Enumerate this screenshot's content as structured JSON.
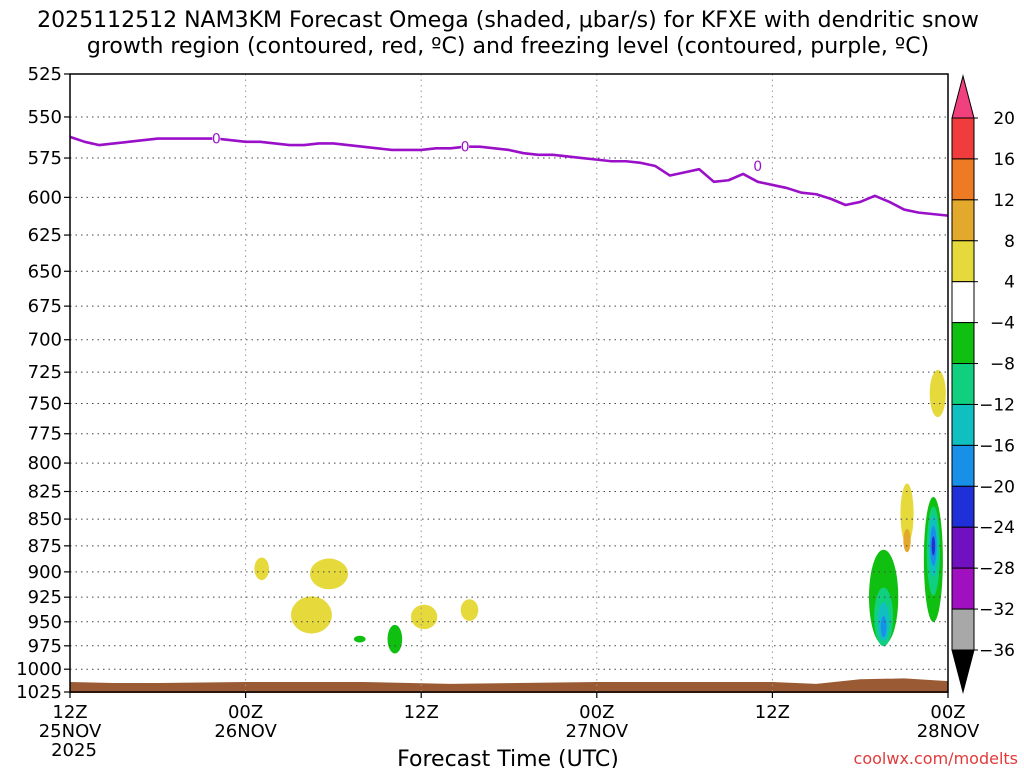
{
  "chart_data": {
    "type": "heatmap",
    "title_line1": "2025112512 NAM3KM Forecast Omega (shaded, μbar/s) for KFXE with dendritic snow",
    "title_line2": "growth region (contoured, red, ºC) and freezing level (contoured, purple, ºC)",
    "xlabel": "Forecast Time (UTC)",
    "ylabel": "",
    "credit": "coolwx.com/modelts",
    "x_range_hours": [
      0,
      60
    ],
    "y_range_hpa": [
      525,
      1025
    ],
    "y_ticks": [
      "525",
      "550",
      "575",
      "600",
      "625",
      "650",
      "675",
      "700",
      "725",
      "750",
      "775",
      "800",
      "825",
      "850",
      "875",
      "900",
      "925",
      "950",
      "975",
      "1000",
      "1025"
    ],
    "x_ticks": [
      {
        "hour": 0,
        "lines": [
          "12Z",
          "25NOV",
          "2025"
        ]
      },
      {
        "hour": 12,
        "lines": [
          "00Z",
          "26NOV"
        ]
      },
      {
        "hour": 24,
        "lines": [
          "12Z"
        ]
      },
      {
        "hour": 36,
        "lines": [
          "00Z",
          "27NOV"
        ]
      },
      {
        "hour": 48,
        "lines": [
          "12Z"
        ]
      },
      {
        "hour": 60,
        "lines": [
          "00Z",
          "28NOV"
        ]
      }
    ],
    "colorbar": {
      "levels": [
        "20",
        "16",
        "12",
        "8",
        "4",
        "−4",
        "−8",
        "−12",
        "−16",
        "−20",
        "−24",
        "−28",
        "−32",
        "−36"
      ],
      "colors": [
        "#f0407e",
        "#f03c3c",
        "#ee7a24",
        "#e3a92c",
        "#e6d93c",
        "#ffffff",
        "#10c010",
        "#10d080",
        "#10c0c0",
        "#1890e8",
        "#2030d8",
        "#7010c0",
        "#a010c0",
        "#a8a8a8",
        "#000000"
      ]
    },
    "freezing_level": {
      "label": "0",
      "color": "#9a10c8",
      "points": [
        [
          0,
          562
        ],
        [
          1,
          565
        ],
        [
          2,
          567
        ],
        [
          3,
          566
        ],
        [
          4,
          565
        ],
        [
          5,
          564
        ],
        [
          6,
          563
        ],
        [
          7,
          563
        ],
        [
          8,
          563
        ],
        [
          9,
          563
        ],
        [
          10,
          563
        ],
        [
          11,
          564
        ],
        [
          12,
          565
        ],
        [
          13,
          565
        ],
        [
          14,
          566
        ],
        [
          15,
          567
        ],
        [
          16,
          567
        ],
        [
          17,
          566
        ],
        [
          18,
          566
        ],
        [
          19,
          567
        ],
        [
          20,
          568
        ],
        [
          21,
          569
        ],
        [
          22,
          570
        ],
        [
          23,
          570
        ],
        [
          24,
          570
        ],
        [
          25,
          569
        ],
        [
          26,
          569
        ],
        [
          27,
          568
        ],
        [
          28,
          568
        ],
        [
          29,
          569
        ],
        [
          30,
          570
        ],
        [
          31,
          572
        ],
        [
          32,
          573
        ],
        [
          33,
          573
        ],
        [
          34,
          574
        ],
        [
          35,
          575
        ],
        [
          36,
          576
        ],
        [
          37,
          577
        ],
        [
          38,
          577
        ],
        [
          39,
          578
        ],
        [
          40,
          580
        ],
        [
          41,
          586
        ],
        [
          42,
          584
        ],
        [
          43,
          582
        ],
        [
          44,
          590
        ],
        [
          45,
          589
        ],
        [
          46,
          585
        ],
        [
          47,
          590
        ],
        [
          48,
          592
        ],
        [
          49,
          594
        ],
        [
          50,
          597
        ],
        [
          51,
          598
        ],
        [
          52,
          601
        ],
        [
          53,
          605
        ],
        [
          54,
          603
        ],
        [
          55,
          599
        ],
        [
          56,
          603
        ],
        [
          57,
          608
        ],
        [
          58,
          610
        ],
        [
          59,
          611
        ],
        [
          60,
          612
        ]
      ],
      "label_positions": [
        [
          10,
          563
        ],
        [
          27,
          568
        ],
        [
          47,
          580
        ]
      ]
    },
    "omega_regions": [
      {
        "hour": 13.1,
        "hpa": 897,
        "w": 0.5,
        "h": 22,
        "value": 5
      },
      {
        "hour": 16.5,
        "hpa": 943,
        "w": 1.4,
        "h": 38,
        "value": 5
      },
      {
        "hour": 17.7,
        "hpa": 902,
        "w": 1.3,
        "h": 30,
        "value": 5
      },
      {
        "hour": 19.8,
        "hpa": 968,
        "w": 0.4,
        "h": 7,
        "value": -5
      },
      {
        "hour": 22.2,
        "hpa": 968,
        "w": 0.5,
        "h": 30,
        "value": -5
      },
      {
        "hour": 24.2,
        "hpa": 945,
        "w": 0.9,
        "h": 25,
        "value": 5
      },
      {
        "hour": 27.3,
        "hpa": 938,
        "w": 0.6,
        "h": 22,
        "value": 5
      },
      {
        "hour": 59.3,
        "hpa": 742,
        "w": 0.55,
        "h": 38,
        "value": 5
      },
      {
        "hour": 57.2,
        "hpa": 845,
        "w": 0.45,
        "h": 55,
        "value": 5
      },
      {
        "hour": 57.2,
        "hpa": 870,
        "w": 0.25,
        "h": 22,
        "value": 9
      },
      {
        "hour": 55.6,
        "hpa": 925,
        "w": 1.0,
        "h": 95,
        "value": -5
      },
      {
        "hour": 55.6,
        "hpa": 945,
        "w": 0.65,
        "h": 60,
        "value": -9
      },
      {
        "hour": 55.6,
        "hpa": 950,
        "w": 0.4,
        "h": 40,
        "value": -13
      },
      {
        "hour": 55.6,
        "hpa": 955,
        "w": 0.2,
        "h": 22,
        "value": -17
      },
      {
        "hour": 59.0,
        "hpa": 888,
        "w": 0.65,
        "h": 120,
        "value": -5
      },
      {
        "hour": 59.0,
        "hpa": 880,
        "w": 0.45,
        "h": 85,
        "value": -9
      },
      {
        "hour": 59.0,
        "hpa": 875,
        "w": 0.32,
        "h": 58,
        "value": -13
      },
      {
        "hour": 59.0,
        "hpa": 875,
        "w": 0.22,
        "h": 38,
        "value": -17
      },
      {
        "hour": 59.0,
        "hpa": 875,
        "w": 0.12,
        "h": 18,
        "value": -21
      }
    ],
    "ground": {
      "color": "#9a5b34",
      "points": [
        [
          0,
          1014
        ],
        [
          3,
          1015
        ],
        [
          6,
          1015
        ],
        [
          12,
          1014
        ],
        [
          20,
          1014
        ],
        [
          26,
          1016
        ],
        [
          36,
          1014
        ],
        [
          48,
          1014
        ],
        [
          51,
          1016
        ],
        [
          54,
          1011
        ],
        [
          57,
          1010
        ],
        [
          60,
          1013
        ]
      ]
    }
  }
}
